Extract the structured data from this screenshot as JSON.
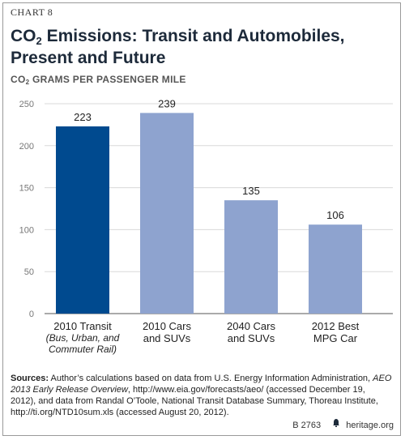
{
  "chart_label": "CHART 8",
  "title_part1": "CO",
  "title_sub": "2",
  "title_part2": " Emissions: Transit and Automobiles,",
  "title_line2": "Present and Future",
  "unit_part1": "CO",
  "unit_sub": "2",
  "unit_part2": " GRAMS PER PASSENGER MILE",
  "sources": {
    "label": "Sources:",
    "text1": " Author’s calculations based on data from U.S. Energy Information Administration, ",
    "italic": "AEO 2013 Early Release Overview",
    "text2": ", http://www.eia.gov/forecasts/aeo/ (accessed December 19, 2012), and data from Randal O’Toole, National Transit Database Summary, Thoreau Institute, http://ti.org/NTD10sum.xls (accessed August 20, 2012)."
  },
  "footer": {
    "code": "B 2763",
    "site": "heritage.org"
  },
  "colors": {
    "highlight": "#004a8f",
    "bar": "#8ea3cf",
    "grid": "#d9d9d9",
    "axis": "#555555"
  },
  "chart_data": {
    "type": "bar",
    "categories": [
      {
        "line1": "2010 Transit",
        "line2": "",
        "note": "(Bus, Urban, and Commuter Rail)"
      },
      {
        "line1": "2010 Cars",
        "line2": "and SUVs",
        "note": ""
      },
      {
        "line1": "2040 Cars",
        "line2": "and SUVs",
        "note": ""
      },
      {
        "line1": "2012 Best",
        "line2": "MPG Car",
        "note": ""
      }
    ],
    "values": [
      223,
      239,
      135,
      106
    ],
    "data_labels": [
      "223",
      "239",
      "135",
      "106"
    ],
    "highlight_index": 0,
    "ylim": [
      0,
      250
    ],
    "yticks": [
      0,
      50,
      100,
      150,
      200,
      250
    ],
    "grid": true
  }
}
